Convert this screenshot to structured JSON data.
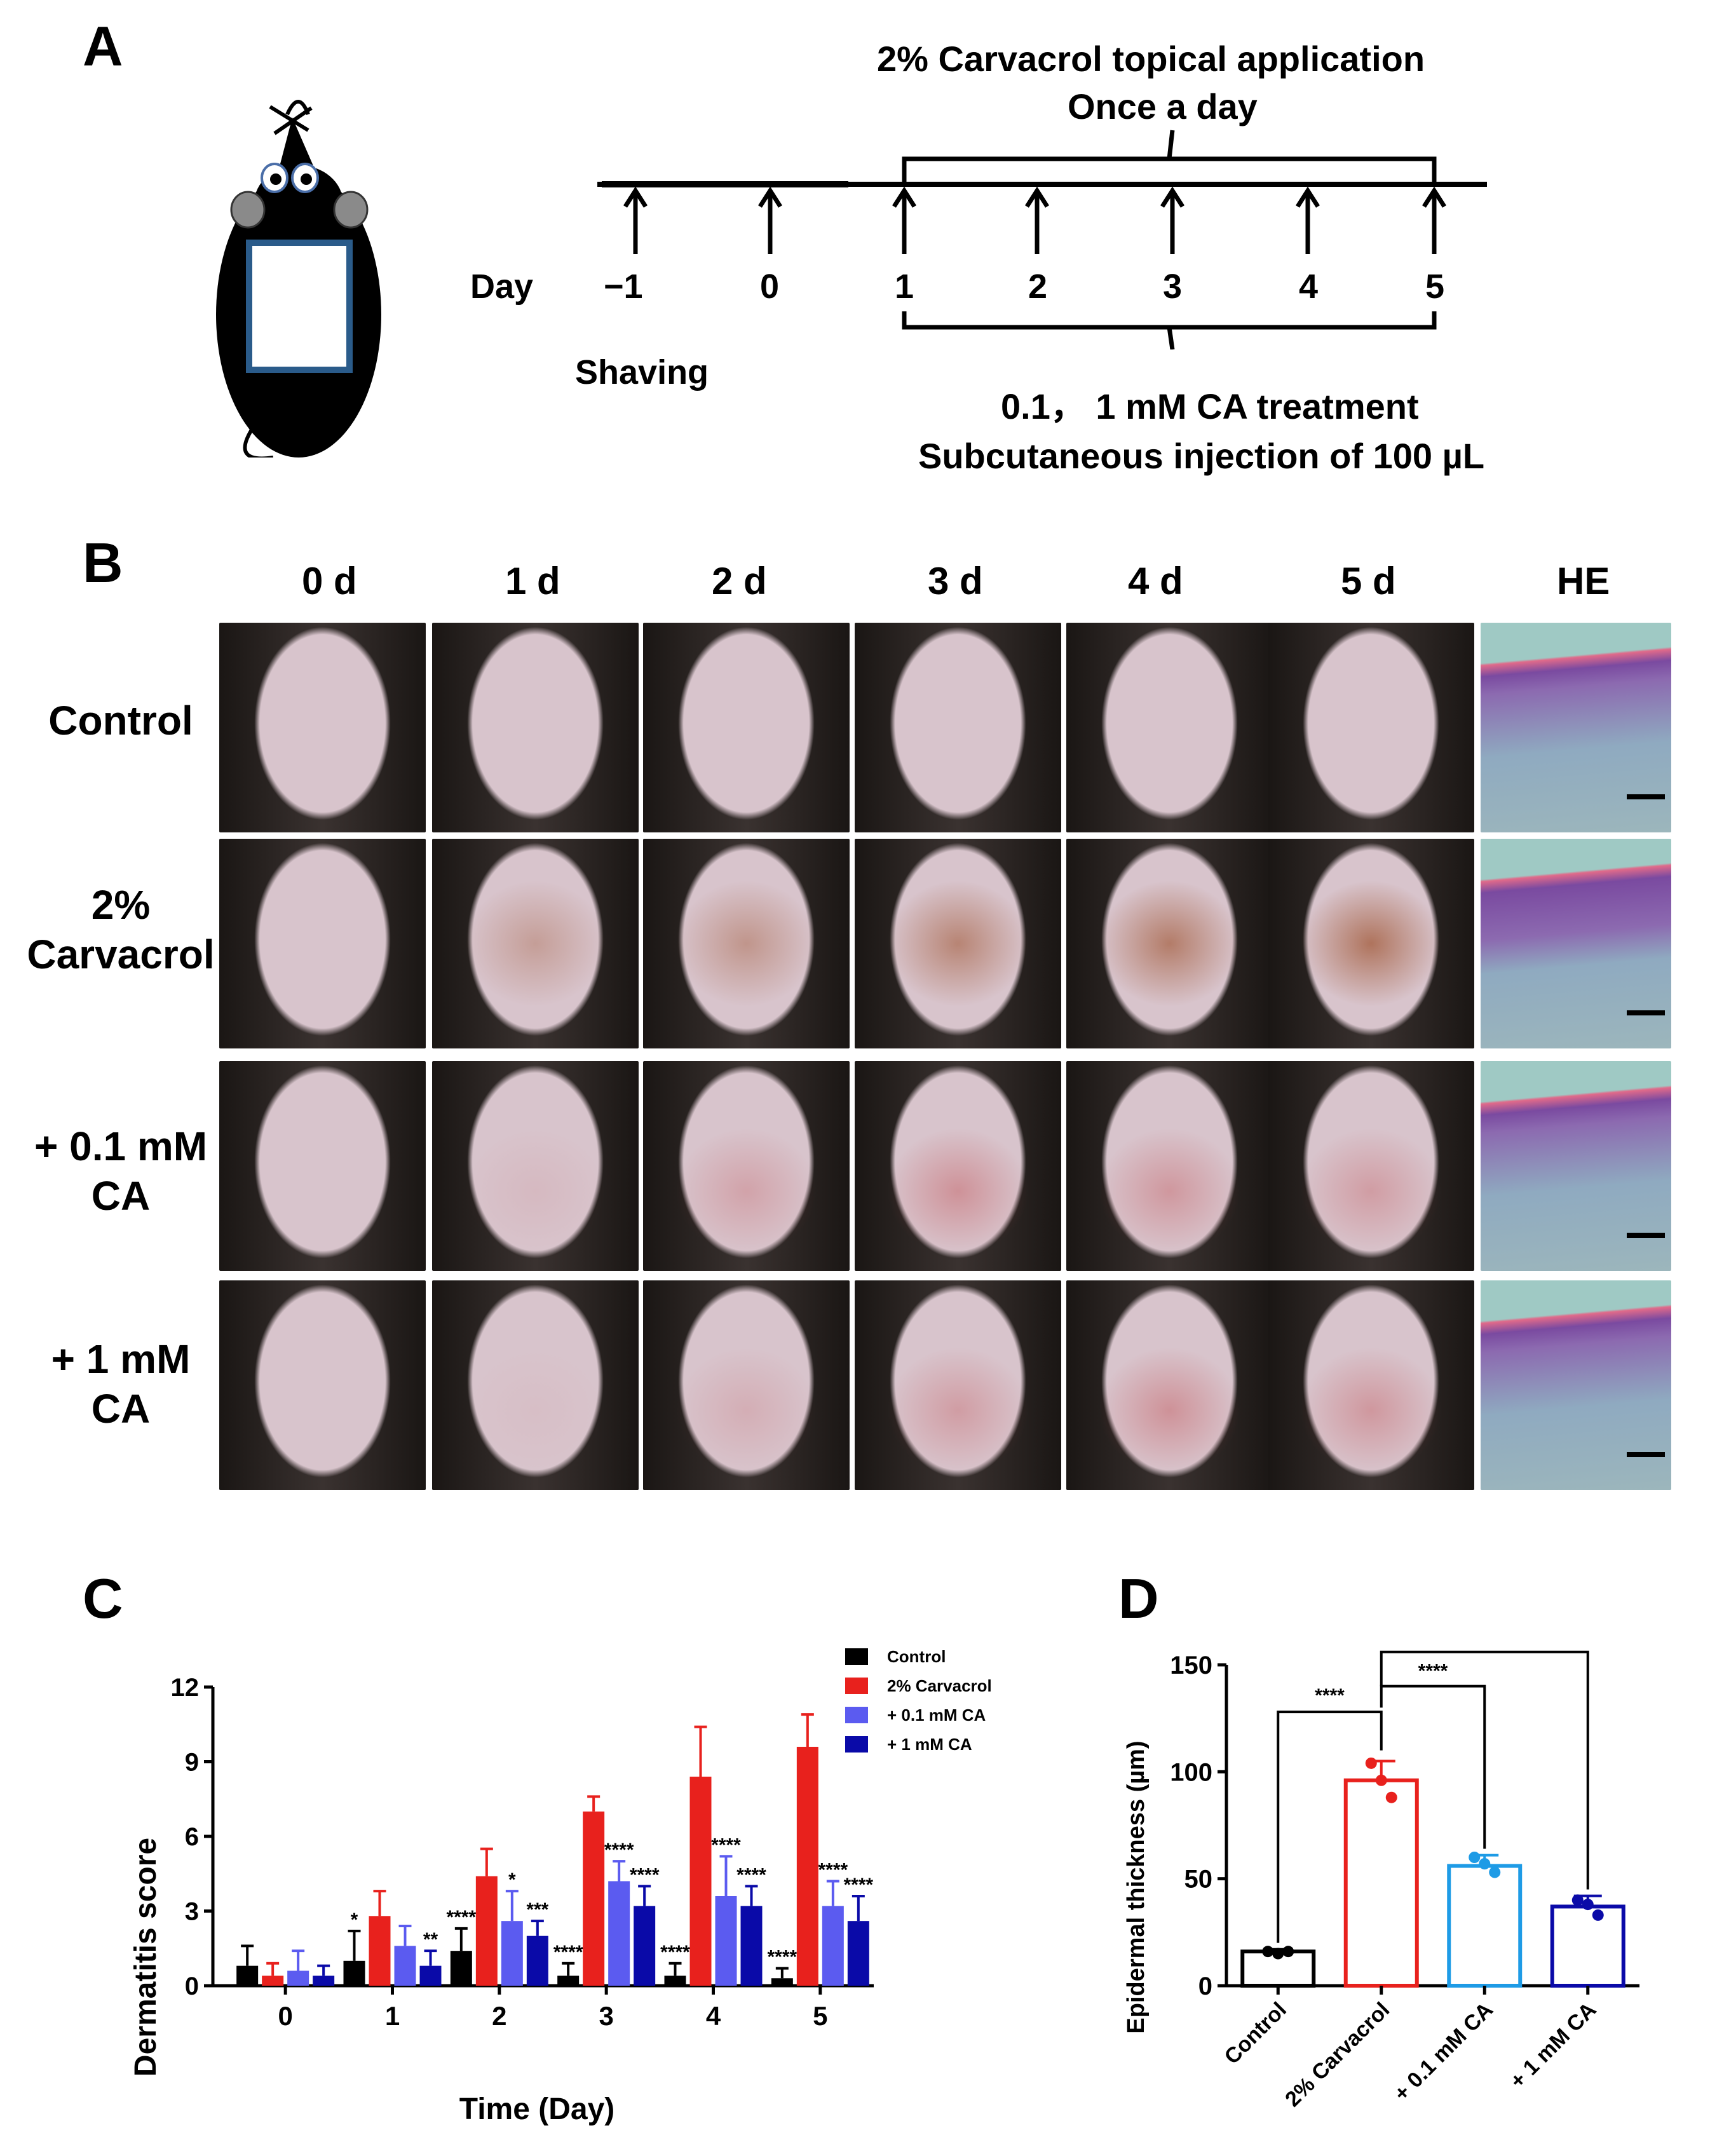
{
  "panelA": {
    "label": "A",
    "top_title_1": "2% Carvacrol topical application",
    "top_title_2": "Once a day",
    "day_label": "Day",
    "days": [
      "−1",
      "0",
      "1",
      "2",
      "3",
      "4",
      "5"
    ],
    "shaving_label": "Shaving",
    "bottom_title_1": "0.1， 1 mM CA treatment",
    "bottom_title_2": "Subcutaneous injection of 100 µL"
  },
  "panelB": {
    "label": "B",
    "columns": [
      "0 d",
      "1 d",
      "2 d",
      "3 d",
      "4 d",
      "5 d",
      "HE"
    ],
    "rows": [
      {
        "line1": "Control",
        "line2": ""
      },
      {
        "line1": "2%",
        "line2": "Carvacrol"
      },
      {
        "line1": "+ 0.1 mM",
        "line2": "CA"
      },
      {
        "line1": "+ 1 mM",
        "line2": "CA"
      }
    ],
    "colors": {
      "skin": "#d8c4cc",
      "fur": "#1a1614",
      "lesion": "#a8664a",
      "red_lesion": "#c0484c",
      "he_bg": "#9fc9c4"
    }
  },
  "chart_data": [
    {
      "panel_label": "C",
      "type": "bar",
      "xlabel": "Time (Day)",
      "ylabel": "Dermatitis score",
      "ylim": [
        0,
        12
      ],
      "yticks": [
        "0",
        "3",
        "6",
        "9",
        "12"
      ],
      "categories": [
        "0",
        "1",
        "2",
        "3",
        "4",
        "5"
      ],
      "legend": "top-right",
      "series": [
        {
          "name": "Control",
          "color": "#000000",
          "values": [
            0.8,
            1.0,
            1.4,
            0.4,
            0.4,
            0.3
          ],
          "errors": [
            0.8,
            1.2,
            0.9,
            0.5,
            0.5,
            0.4
          ],
          "annotations": [
            "",
            "*",
            "****",
            "****",
            "****",
            "****"
          ]
        },
        {
          "name": "2% Carvacrol",
          "color": "#e8211d",
          "values": [
            0.4,
            2.8,
            4.4,
            7.0,
            8.4,
            9.6
          ],
          "errors": [
            0.5,
            1.0,
            1.1,
            0.6,
            2.0,
            1.3
          ],
          "annotations": [
            "",
            "",
            "",
            "",
            "",
            ""
          ]
        },
        {
          "name": "+ 0.1 mM CA",
          "color": "#5b5bf0",
          "values": [
            0.6,
            1.6,
            2.6,
            4.2,
            3.6,
            3.2
          ],
          "errors": [
            0.8,
            0.8,
            1.2,
            0.8,
            1.6,
            1.0
          ],
          "annotations": [
            "",
            "",
            "*",
            "****",
            "****",
            "****"
          ]
        },
        {
          "name": "+ 1 mM CA",
          "color": "#0a0aa8",
          "values": [
            0.4,
            0.8,
            2.0,
            3.2,
            3.2,
            2.6
          ],
          "errors": [
            0.4,
            0.6,
            0.6,
            0.8,
            0.8,
            1.0
          ],
          "annotations": [
            "",
            "**",
            "***",
            "****",
            "****",
            "****"
          ]
        }
      ]
    },
    {
      "panel_label": "D",
      "type": "bar",
      "xlabel": "",
      "ylabel": "Epidermal thickness (µm)",
      "ylim": [
        0,
        150
      ],
      "yticks": [
        "0",
        "50",
        "100",
        "150"
      ],
      "categories": [
        "Control",
        "2% Carvacrol",
        "+ 0.1 mM CA",
        "+ 1 mM CA"
      ],
      "colors": [
        "#000000",
        "#e8211d",
        "#1e9be6",
        "#0a0aa8"
      ],
      "values": [
        16,
        96,
        56,
        37
      ],
      "errors": [
        1,
        9,
        5,
        5
      ],
      "points": [
        [
          16,
          15,
          16
        ],
        [
          104,
          96,
          88
        ],
        [
          60,
          57,
          53
        ],
        [
          40,
          38,
          33
        ]
      ],
      "comparisons": [
        {
          "from": 0,
          "to": 1,
          "label": "****"
        },
        {
          "from": 1,
          "to": 2,
          "label": "****"
        },
        {
          "from": 1,
          "to": 3,
          "label": "****"
        }
      ]
    }
  ]
}
